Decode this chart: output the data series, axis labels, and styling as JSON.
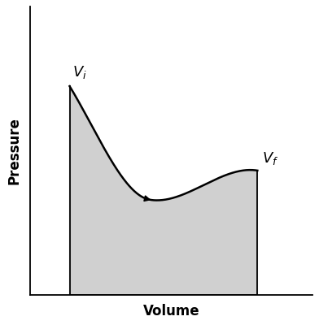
{
  "title": "",
  "xlabel": "Volume",
  "ylabel": "Pressure",
  "background_color": "#ffffff",
  "fill_color": "#d0d0d0",
  "curve_color": "#000000",
  "line_color": "#000000",
  "xlabel_fontsize": 12,
  "ylabel_fontsize": 12,
  "label_Vi": "$V_i$",
  "label_Vf": "$V_f$",
  "label_fontsize": 13,
  "Vi_x": 1.0,
  "Vf_x": 5.8,
  "Vi_y": 4.2,
  "Vf_y": 2.5,
  "curve_min_x": 3.2,
  "curve_min_y": 1.9,
  "x_min": 0.0,
  "x_max": 7.2,
  "y_min": 0.0,
  "y_max": 5.8,
  "npts": 300,
  "arrow_t": 0.42
}
